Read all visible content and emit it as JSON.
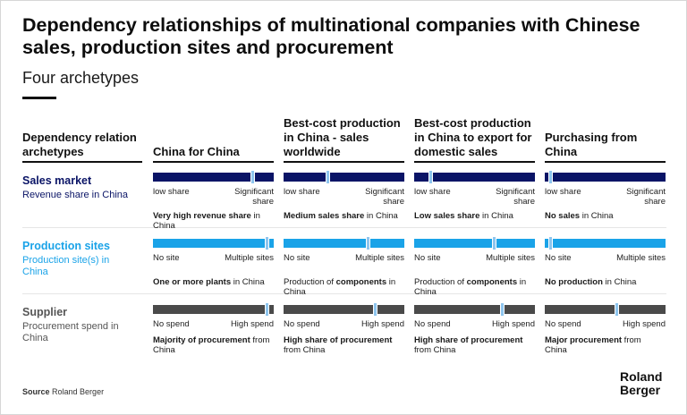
{
  "title": "Dependency relationships of multinational companies with Chinese sales, production sites and procurement",
  "subtitle": "Four archetypes",
  "first_column_header": "Dependency relation archetypes",
  "columns": [
    "China for China",
    "Best-cost production in China - sales worldwide",
    "Best-cost production in China to export for domestic sales",
    "Purchasing from China"
  ],
  "colors": {
    "sales": "#0a1466",
    "production": "#1aa3e8",
    "supplier": "#4a4a4a",
    "marker": "#8ec5ee"
  },
  "rows": [
    {
      "title": "Sales market",
      "subtitle": "Revenue share in China",
      "left_label": "low share",
      "right_label": "Significant share",
      "cells": [
        {
          "level": 0.84,
          "bold": "Very high revenue share",
          "rest": " in China"
        },
        {
          "level": 0.36,
          "bold": "Medium sales share",
          "rest": " in China"
        },
        {
          "level": 0.12,
          "bold": "Low sales share",
          "rest": " in China"
        },
        {
          "level": 0.03,
          "bold": "No sales",
          "rest": " in China"
        }
      ]
    },
    {
      "title": "Production sites",
      "subtitle": "Production site(s) in China",
      "left_label": "No site",
      "right_label": "Multiple sites",
      "cells": [
        {
          "level": 0.96,
          "bold": "One or more plants",
          "rest": " in China"
        },
        {
          "level": 0.71,
          "pre": "Production of ",
          "bold": "components",
          "rest": " in China"
        },
        {
          "level": 0.67,
          "pre": "Production of ",
          "bold": "components",
          "rest": " in China"
        },
        {
          "level": 0.03,
          "bold": "No production",
          "rest": " in China"
        }
      ]
    },
    {
      "title": "Supplier",
      "subtitle": "Procurement spend in China",
      "left_label": "No spend",
      "right_label": "High spend",
      "cells": [
        {
          "level": 0.96,
          "bold": "Majority of procurement",
          "rest": " from China"
        },
        {
          "level": 0.77,
          "bold": "High share of procurement",
          "rest": " from China"
        },
        {
          "level": 0.74,
          "bold": "High share of procurement",
          "rest": " from China"
        },
        {
          "level": 0.6,
          "bold": "Major procurement",
          "rest": " from China"
        }
      ]
    }
  ],
  "source_label": "Source",
  "source_text": "Roland Berger",
  "logo_line1": "Roland",
  "logo_line2": "Berger"
}
